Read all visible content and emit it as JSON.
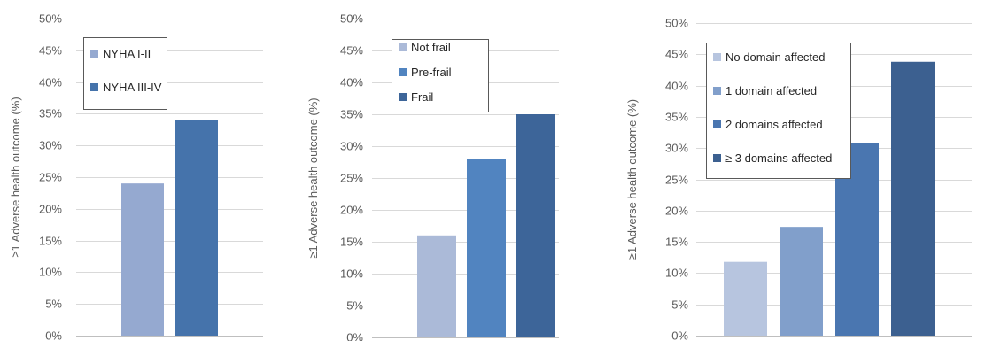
{
  "chart_data": [
    {
      "type": "bar",
      "ylabel": "≥1 Adverse health outcome (%)",
      "ylim": [
        0,
        50
      ],
      "yticks": [
        "0%",
        "5%",
        "10%",
        "15%",
        "20%",
        "25%",
        "30%",
        "35%",
        "40%",
        "45%",
        "50%"
      ],
      "grid": true,
      "legend_position": "top-left",
      "series": [
        {
          "name": "NYHA I-II",
          "values": [
            24
          ],
          "color": "#95A9D0"
        },
        {
          "name": "NYHA III-IV",
          "values": [
            34
          ],
          "color": "#4573AB"
        }
      ]
    },
    {
      "type": "bar",
      "ylabel": "≥1 Adverse health outcome (%)",
      "ylim": [
        0,
        50
      ],
      "yticks": [
        "0%",
        "5%",
        "10%",
        "15%",
        "20%",
        "25%",
        "30%",
        "35%",
        "40%",
        "45%",
        "50%"
      ],
      "grid": true,
      "legend_position": "top-left",
      "series": [
        {
          "name": "Not frail",
          "values": [
            16
          ],
          "color": "#ABBAD8"
        },
        {
          "name": "Pre-frail",
          "values": [
            28
          ],
          "color": "#5184C0"
        },
        {
          "name": "Frail",
          "values": [
            35
          ],
          "color": "#3D6599"
        }
      ]
    },
    {
      "type": "bar",
      "ylabel": "≥1 Adverse health outcome (%)",
      "ylim": [
        0,
        50
      ],
      "yticks": [
        "0%",
        "5%",
        "10%",
        "15%",
        "20%",
        "25%",
        "30%",
        "35%",
        "40%",
        "45%",
        "50%"
      ],
      "grid": true,
      "legend_position": "top-left",
      "series": [
        {
          "name": "No domain affected",
          "values": [
            11.8
          ],
          "color": "#B7C5DF"
        },
        {
          "name": "1 domain affected",
          "values": [
            17.4
          ],
          "color": "#819FCB"
        },
        {
          "name": "2 domains affected",
          "values": [
            30.8
          ],
          "color": "#4A76B0"
        },
        {
          "name": "≥ 3 domains affected",
          "values": [
            43.8
          ],
          "color": "#3C6090"
        }
      ]
    }
  ]
}
